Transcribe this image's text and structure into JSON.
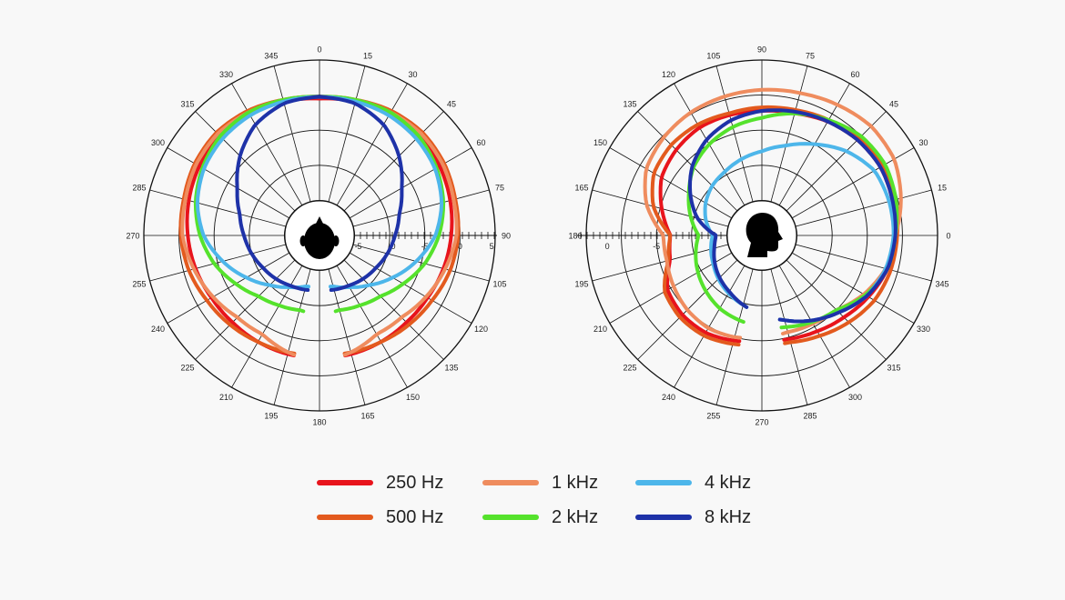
{
  "chart_data": [
    {
      "type": "polar-line",
      "view": "horizontal",
      "angle_labels": [
        "0",
        "15",
        "30",
        "45",
        "60",
        "75",
        "90",
        "105",
        "120",
        "135",
        "150",
        "165",
        "180",
        "195",
        "210",
        "225",
        "240",
        "255",
        "270",
        "285",
        "300",
        "315",
        "330",
        "345"
      ],
      "radial_tick_labels": [
        "-5",
        "0",
        "-5",
        "0",
        "5"
      ],
      "series": [
        {
          "name": "250 Hz",
          "color": "#e8141c",
          "r": [
            0.78,
            0.79,
            0.8,
            0.8,
            0.79,
            0.77,
            0.75,
            0.73,
            0.71,
            0.7,
            0.7,
            0.7,
            0.7,
            0.7,
            0.7,
            0.7,
            0.71,
            0.73,
            0.75,
            0.77,
            0.79,
            0.8,
            0.8,
            0.79
          ]
        },
        {
          "name": "500 Hz",
          "color": "#e35a1e",
          "r": [
            0.79,
            0.8,
            0.82,
            0.83,
            0.82,
            0.8,
            0.79,
            0.77,
            0.74,
            0.72,
            0.7,
            0.69,
            0.68,
            0.69,
            0.7,
            0.72,
            0.74,
            0.77,
            0.79,
            0.8,
            0.82,
            0.83,
            0.82,
            0.8
          ]
        },
        {
          "name": "1 kHz",
          "color": "#ef8c5e",
          "r": [
            0.79,
            0.8,
            0.81,
            0.82,
            0.81,
            0.79,
            0.78,
            0.74,
            0.7,
            0.66,
            0.65,
            0.69,
            0.72,
            0.69,
            0.65,
            0.66,
            0.7,
            0.74,
            0.78,
            0.79,
            0.81,
            0.82,
            0.81,
            0.8
          ]
        },
        {
          "name": "2 kHz",
          "color": "#55e22c",
          "r": [
            0.79,
            0.8,
            0.81,
            0.8,
            0.77,
            0.73,
            0.68,
            0.62,
            0.55,
            0.49,
            0.46,
            0.44,
            0.45,
            0.44,
            0.46,
            0.49,
            0.55,
            0.62,
            0.68,
            0.73,
            0.77,
            0.8,
            0.81,
            0.8
          ]
        },
        {
          "name": "4 kHz",
          "color": "#4db6ea",
          "r": [
            0.79,
            0.79,
            0.79,
            0.78,
            0.76,
            0.72,
            0.66,
            0.57,
            0.48,
            0.4,
            0.34,
            0.3,
            0.29,
            0.3,
            0.34,
            0.4,
            0.48,
            0.57,
            0.66,
            0.72,
            0.76,
            0.78,
            0.79,
            0.79
          ]
        },
        {
          "name": "8 kHz",
          "color": "#1e32a8",
          "r": [
            0.79,
            0.78,
            0.73,
            0.64,
            0.54,
            0.47,
            0.43,
            0.4,
            0.37,
            0.35,
            0.33,
            0.32,
            0.31,
            0.32,
            0.33,
            0.35,
            0.37,
            0.4,
            0.43,
            0.47,
            0.54,
            0.64,
            0.73,
            0.78
          ]
        }
      ]
    },
    {
      "type": "polar-line",
      "view": "vertical",
      "angle_labels": [
        "0",
        "15",
        "30",
        "45",
        "60",
        "75",
        "90",
        "105",
        "120",
        "135",
        "150",
        "165",
        "180",
        "195",
        "210",
        "225",
        "240",
        "255",
        "270",
        "285",
        "300",
        "315",
        "330",
        "345"
      ],
      "radial_tick_labels": [
        "-5",
        "0"
      ],
      "series": [
        {
          "name": "250 Hz",
          "color": "#e8141c",
          "r": [
            0.75,
            0.77,
            0.78,
            0.77,
            0.75,
            0.72,
            0.71,
            0.71,
            0.71,
            0.69,
            0.66,
            0.59,
            0.52,
            0.54,
            0.62,
            0.64,
            0.64,
            0.62,
            0.6,
            0.61,
            0.63,
            0.66,
            0.7,
            0.74
          ]
        },
        {
          "name": "500 Hz",
          "color": "#e35a1e",
          "r": [
            0.77,
            0.79,
            0.8,
            0.78,
            0.76,
            0.74,
            0.73,
            0.72,
            0.73,
            0.73,
            0.71,
            0.64,
            0.52,
            0.55,
            0.64,
            0.66,
            0.66,
            0.64,
            0.62,
            0.63,
            0.66,
            0.7,
            0.74,
            0.76
          ]
        },
        {
          "name": "1 kHz",
          "color": "#ef8c5e",
          "r": [
            0.76,
            0.82,
            0.87,
            0.88,
            0.86,
            0.84,
            0.83,
            0.82,
            0.81,
            0.79,
            0.76,
            0.68,
            0.56,
            0.56,
            0.58,
            0.6,
            0.61,
            0.6,
            0.58,
            0.57,
            0.58,
            0.6,
            0.67,
            0.73
          ]
        },
        {
          "name": "2 kHz",
          "color": "#55e22c",
          "r": [
            0.76,
            0.79,
            0.81,
            0.8,
            0.76,
            0.72,
            0.67,
            0.64,
            0.6,
            0.55,
            0.48,
            0.42,
            0.36,
            0.39,
            0.42,
            0.45,
            0.48,
            0.5,
            0.52,
            0.54,
            0.57,
            0.6,
            0.68,
            0.74
          ]
        },
        {
          "name": "4 kHz",
          "color": "#4db6ea",
          "r": [
            0.75,
            0.75,
            0.74,
            0.68,
            0.6,
            0.53,
            0.48,
            0.45,
            0.42,
            0.4,
            0.37,
            0.33,
            0.28,
            0.3,
            0.32,
            0.35,
            0.38,
            0.41,
            0.45,
            0.5,
            0.56,
            0.62,
            0.69,
            0.73
          ]
        },
        {
          "name": "8 kHz",
          "color": "#1e32a8",
          "r": [
            0.76,
            0.77,
            0.78,
            0.77,
            0.75,
            0.73,
            0.71,
            0.68,
            0.63,
            0.56,
            0.47,
            0.38,
            0.26,
            0.28,
            0.31,
            0.34,
            0.37,
            0.41,
            0.45,
            0.5,
            0.56,
            0.62,
            0.69,
            0.74
          ]
        }
      ]
    }
  ],
  "legend": [
    {
      "label": "250 Hz",
      "color": "#e8141c"
    },
    {
      "label": "500 Hz",
      "color": "#e35a1e"
    },
    {
      "label": "1 kHz",
      "color": "#ef8c5e"
    },
    {
      "label": "2 kHz",
      "color": "#55e22c"
    },
    {
      "label": "4 kHz",
      "color": "#4db6ea"
    },
    {
      "label": "8 kHz",
      "color": "#1e32a8"
    }
  ]
}
